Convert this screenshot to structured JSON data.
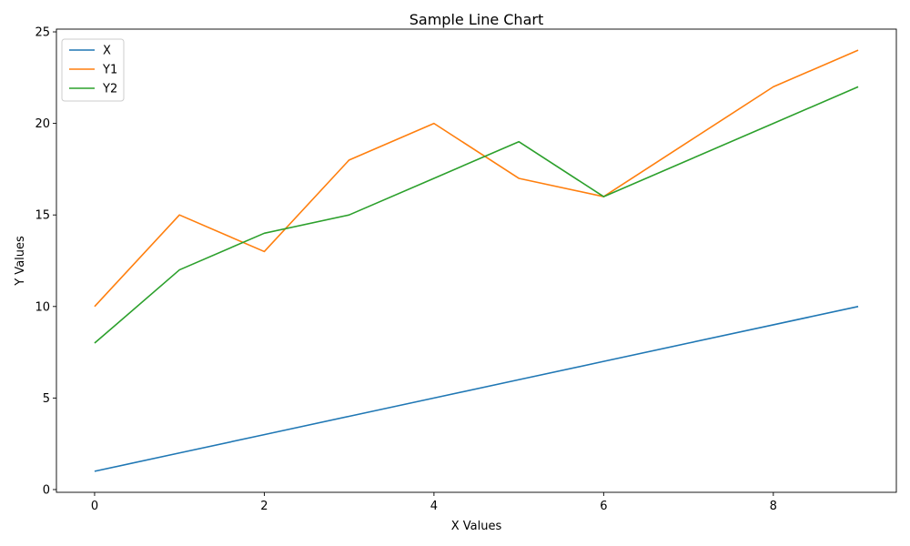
{
  "chart_data": {
    "type": "line",
    "title": "Sample Line Chart",
    "xlabel": "X Values",
    "ylabel": "Y Values",
    "x": [
      0,
      1,
      2,
      3,
      4,
      5,
      6,
      7,
      8,
      9
    ],
    "series": [
      {
        "name": "X",
        "color": "#1f77b4",
        "values": [
          1,
          2,
          3,
          4,
          5,
          6,
          7,
          8,
          9,
          10
        ]
      },
      {
        "name": "Y1",
        "color": "#ff7f0e",
        "values": [
          10,
          15,
          13,
          18,
          20,
          17,
          16,
          19,
          22,
          24
        ]
      },
      {
        "name": "Y2",
        "color": "#2ca02c",
        "values": [
          8,
          12,
          14,
          15,
          17,
          19,
          16,
          18,
          20,
          22
        ]
      }
    ],
    "xlim": [
      -0.45,
      9.45
    ],
    "ylim": [
      -0.15,
      25.15
    ],
    "xticks": [
      0,
      2,
      4,
      6,
      8
    ],
    "yticks": [
      0,
      5,
      10,
      15,
      20,
      25
    ],
    "grid": false,
    "legend_position": "upper-left"
  }
}
